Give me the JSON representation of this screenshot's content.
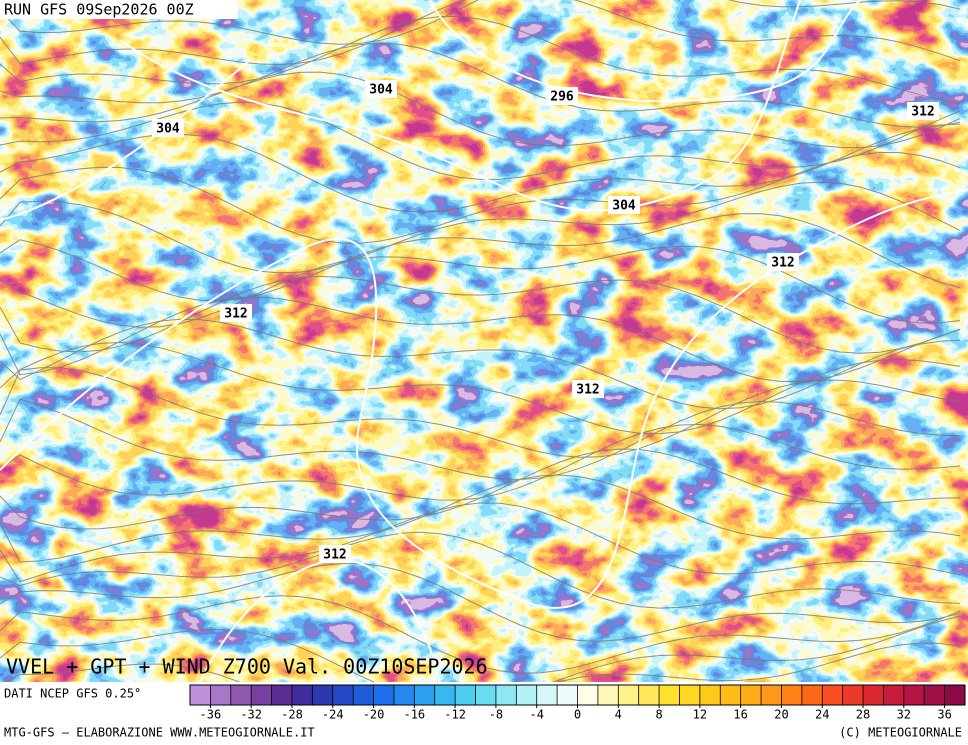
{
  "header": {
    "run": "RUN GFS 09Sep2026 00Z"
  },
  "map": {
    "contour_labels": [
      "296",
      "304",
      "304",
      "304",
      "312",
      "312",
      "312",
      "312",
      "312"
    ]
  },
  "footer": {
    "title": "VVEL + GPT + WIND Z700 Val. 00Z10SEP2026",
    "source": "DATI NCEP GFS 0.25°",
    "credit": "MTG-GFS — ELABORAZIONE WWW.METEOGIORNALE.IT",
    "copyright": "(C) METEOGIORNALE"
  },
  "colorbar": {
    "range": [
      -38,
      38
    ],
    "ticks": [
      -36,
      -32,
      -28,
      -24,
      -20,
      -16,
      -12,
      -8,
      -4,
      0,
      4,
      8,
      12,
      16,
      20,
      24,
      28,
      32,
      36
    ],
    "colors": [
      "#c090d8",
      "#a878c8",
      "#9058b0",
      "#7840a0",
      "#5a2c94",
      "#402c9c",
      "#2c38b0",
      "#2448c8",
      "#1e5cdc",
      "#1e70ec",
      "#2488f0",
      "#2ca0f0",
      "#38b8f0",
      "#4ccef0",
      "#68ddf2",
      "#8ce8f4",
      "#b0f2f8",
      "#d4f8fa",
      "#eefcfc",
      "#fffde8",
      "#fff8b8",
      "#fff088",
      "#ffe858",
      "#ffe030",
      "#ffd620",
      "#ffca18",
      "#ffbc18",
      "#ffac18",
      "#ff9818",
      "#ff8218",
      "#ff6818",
      "#f84e20",
      "#ec3828",
      "#dc2830",
      "#c81c3a",
      "#b41442",
      "#a01046",
      "#8c0a48"
    ]
  }
}
